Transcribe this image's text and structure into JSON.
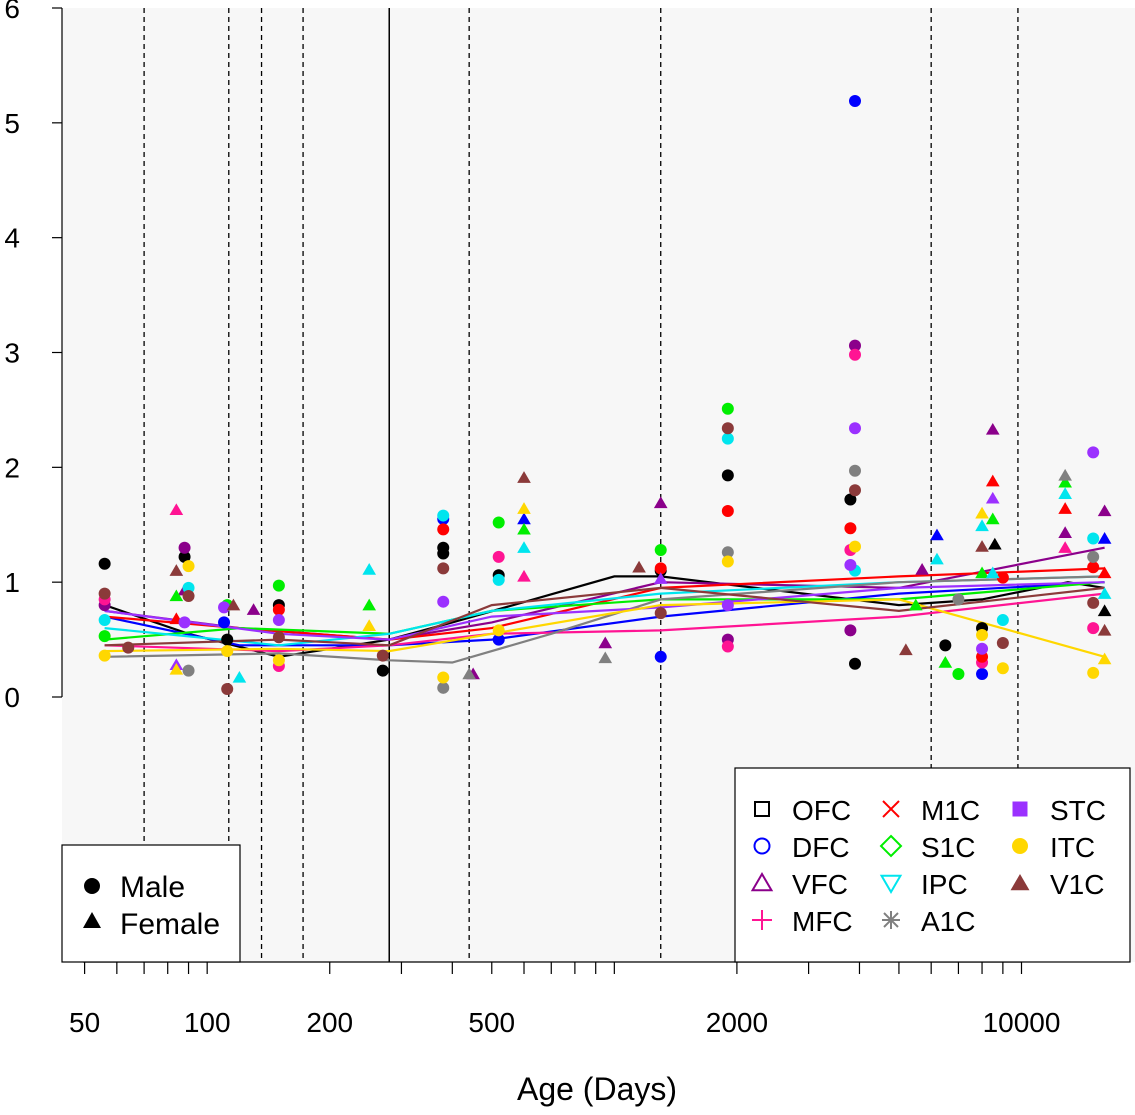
{
  "chart_data": {
    "type": "scatter",
    "title": "",
    "xlabel": "Age (Days)",
    "ylabel": "",
    "x_scale": "log",
    "xlim": [
      44,
      19000
    ],
    "ylim": [
      0,
      6
    ],
    "x_ticks": [
      {
        "value": 50,
        "label": "50"
      },
      {
        "value": 100,
        "label": "100"
      },
      {
        "value": 200,
        "label": "200"
      },
      {
        "value": 500,
        "label": "500"
      },
      {
        "value": 2000,
        "label": "2000"
      },
      {
        "value": 10000,
        "label": "10000"
      }
    ],
    "y_ticks": [
      {
        "value": 0,
        "label": "0"
      },
      {
        "value": 1,
        "label": "1"
      },
      {
        "value": 2,
        "label": "2"
      },
      {
        "value": 3,
        "label": "3"
      },
      {
        "value": 4,
        "label": "4"
      },
      {
        "value": 5,
        "label": "5"
      },
      {
        "value": 6,
        "label": "6"
      }
    ],
    "vertical_lines_dashed": [
      70,
      113,
      136,
      172,
      440,
      1300,
      6000,
      9800
    ],
    "vertical_line_solid": 280,
    "sex_legend": [
      {
        "label": "Male",
        "symbol": "circle"
      },
      {
        "label": "Female",
        "symbol": "triangle"
      }
    ],
    "region_legend_position": "bottom-right",
    "sex_legend_position": "bottom-left",
    "regions": [
      {
        "name": "OFC",
        "color": "#000000",
        "symbol": "square-open"
      },
      {
        "name": "DFC",
        "color": "#0000ff",
        "symbol": "circle-open"
      },
      {
        "name": "VFC",
        "color": "#8b008b",
        "symbol": "triangle-open"
      },
      {
        "name": "MFC",
        "color": "#ff1493",
        "symbol": "plus"
      },
      {
        "name": "M1C",
        "color": "#ff0000",
        "symbol": "cross"
      },
      {
        "name": "S1C",
        "color": "#00ee00",
        "symbol": "diamond-open"
      },
      {
        "name": "IPC",
        "color": "#00e5ee",
        "symbol": "triangle-down-open"
      },
      {
        "name": "A1C",
        "color": "#808080",
        "symbol": "asterisk"
      },
      {
        "name": "STC",
        "color": "#9b30ff",
        "symbol": "square-filled"
      },
      {
        "name": "ITC",
        "color": "#ffd700",
        "symbol": "circle-filled"
      },
      {
        "name": "V1C",
        "color": "#8b3a3a",
        "symbol": "triangle-filled"
      }
    ],
    "trend_lines": [
      {
        "name": "OFC",
        "points": [
          [
            56,
            0.8
          ],
          [
            90,
            0.55
          ],
          [
            150,
            0.35
          ],
          [
            280,
            0.5
          ],
          [
            400,
            0.65
          ],
          [
            1000,
            1.05
          ],
          [
            1300,
            1.05
          ],
          [
            5000,
            0.8
          ],
          [
            8000,
            0.85
          ],
          [
            13000,
            1.0
          ],
          [
            16000,
            0.95
          ]
        ]
      },
      {
        "name": "DFC",
        "points": [
          [
            56,
            0.7
          ],
          [
            120,
            0.45
          ],
          [
            280,
            0.45
          ],
          [
            500,
            0.5
          ],
          [
            1300,
            0.7
          ],
          [
            5000,
            0.9
          ],
          [
            16000,
            1.0
          ]
        ]
      },
      {
        "name": "VFC",
        "points": [
          [
            56,
            0.75
          ],
          [
            120,
            0.6
          ],
          [
            280,
            0.5
          ],
          [
            500,
            0.65
          ],
          [
            1300,
            1.0
          ],
          [
            5000,
            0.95
          ],
          [
            16000,
            1.3
          ]
        ]
      },
      {
        "name": "MFC",
        "points": [
          [
            56,
            0.45
          ],
          [
            150,
            0.4
          ],
          [
            280,
            0.45
          ],
          [
            500,
            0.55
          ],
          [
            1300,
            0.58
          ],
          [
            5000,
            0.7
          ],
          [
            16000,
            0.9
          ]
        ]
      },
      {
        "name": "M1C",
        "points": [
          [
            56,
            0.7
          ],
          [
            120,
            0.6
          ],
          [
            280,
            0.5
          ],
          [
            500,
            0.6
          ],
          [
            1300,
            0.95
          ],
          [
            5000,
            1.05
          ],
          [
            16000,
            1.12
          ]
        ]
      },
      {
        "name": "S1C",
        "points": [
          [
            56,
            0.5
          ],
          [
            120,
            0.6
          ],
          [
            280,
            0.55
          ],
          [
            500,
            0.75
          ],
          [
            1300,
            0.85
          ],
          [
            5000,
            0.85
          ],
          [
            16000,
            1.0
          ]
        ]
      },
      {
        "name": "IPC",
        "points": [
          [
            56,
            0.6
          ],
          [
            150,
            0.45
          ],
          [
            280,
            0.55
          ],
          [
            500,
            0.75
          ],
          [
            1300,
            0.9
          ],
          [
            5000,
            1.0
          ],
          [
            16000,
            1.05
          ]
        ]
      },
      {
        "name": "A1C",
        "points": [
          [
            56,
            0.35
          ],
          [
            150,
            0.38
          ],
          [
            280,
            0.32
          ],
          [
            400,
            0.3
          ],
          [
            700,
            0.55
          ],
          [
            1300,
            0.85
          ],
          [
            5000,
            1.0
          ],
          [
            16000,
            1.05
          ]
        ]
      },
      {
        "name": "STC",
        "points": [
          [
            56,
            0.75
          ],
          [
            150,
            0.55
          ],
          [
            280,
            0.5
          ],
          [
            500,
            0.7
          ],
          [
            1300,
            0.78
          ],
          [
            5000,
            0.95
          ],
          [
            16000,
            1.0
          ]
        ]
      },
      {
        "name": "ITC",
        "points": [
          [
            56,
            0.4
          ],
          [
            150,
            0.42
          ],
          [
            280,
            0.4
          ],
          [
            500,
            0.55
          ],
          [
            1300,
            0.8
          ],
          [
            5000,
            0.85
          ],
          [
            16000,
            0.35
          ]
        ]
      },
      {
        "name": "V1C",
        "points": [
          [
            56,
            0.45
          ],
          [
            150,
            0.5
          ],
          [
            280,
            0.45
          ],
          [
            500,
            0.8
          ],
          [
            1300,
            0.95
          ],
          [
            5000,
            0.75
          ],
          [
            16000,
            0.95
          ]
        ]
      }
    ],
    "points": [
      [
        "OFC",
        "M",
        56,
        1.16
      ],
      [
        "OFC",
        "M",
        88,
        1.22
      ],
      [
        "OFC",
        "M",
        112,
        0.5
      ],
      [
        "OFC",
        "M",
        150,
        0.8
      ],
      [
        "OFC",
        "M",
        270,
        0.23
      ],
      [
        "OFC",
        "M",
        380,
        1.3
      ],
      [
        "OFC",
        "M",
        380,
        1.25
      ],
      [
        "OFC",
        "M",
        520,
        1.06
      ],
      [
        "OFC",
        "M",
        1300,
        1.1
      ],
      [
        "OFC",
        "M",
        1900,
        1.93
      ],
      [
        "OFC",
        "M",
        3800,
        1.72
      ],
      [
        "OFC",
        "M",
        3900,
        0.29
      ],
      [
        "OFC",
        "M",
        6500,
        0.45
      ],
      [
        "OFC",
        "M",
        8000,
        0.6
      ],
      [
        "OFC",
        "F",
        8600,
        1.33
      ],
      [
        "OFC",
        "F",
        16000,
        0.75
      ],
      [
        "DFC",
        "M",
        380,
        1.55
      ],
      [
        "DFC",
        "M",
        520,
        0.5
      ],
      [
        "DFC",
        "M",
        1300,
        0.35
      ],
      [
        "DFC",
        "M",
        3900,
        5.19
      ],
      [
        "DFC",
        "M",
        8000,
        0.2
      ],
      [
        "DFC",
        "F",
        6200,
        1.41
      ],
      [
        "DFC",
        "F",
        600,
        1.55
      ],
      [
        "DFC",
        "F",
        16000,
        1.38
      ],
      [
        "DFC",
        "M",
        110,
        0.65
      ],
      [
        "VFC",
        "M",
        88,
        1.3
      ],
      [
        "VFC",
        "M",
        56,
        0.8
      ],
      [
        "VFC",
        "M",
        1900,
        0.5
      ],
      [
        "VFC",
        "M",
        3800,
        0.58
      ],
      [
        "VFC",
        "M",
        3900,
        3.06
      ],
      [
        "VFC",
        "F",
        88,
        0.93
      ],
      [
        "VFC",
        "F",
        130,
        0.76
      ],
      [
        "VFC",
        "F",
        1300,
        1.69
      ],
      [
        "VFC",
        "F",
        8500,
        2.33
      ],
      [
        "VFC",
        "F",
        12800,
        1.43
      ],
      [
        "VFC",
        "F",
        16000,
        1.62
      ],
      [
        "VFC",
        "F",
        5700,
        1.11
      ],
      [
        "VFC",
        "F",
        950,
        0.47
      ],
      [
        "VFC",
        "F",
        450,
        0.2
      ],
      [
        "MFC",
        "M",
        56,
        0.85
      ],
      [
        "MFC",
        "M",
        150,
        0.27
      ],
      [
        "MFC",
        "M",
        520,
        1.22
      ],
      [
        "MFC",
        "M",
        1900,
        0.44
      ],
      [
        "MFC",
        "M",
        3800,
        1.28
      ],
      [
        "MFC",
        "M",
        3900,
        2.98
      ],
      [
        "MFC",
        "M",
        8000,
        0.3
      ],
      [
        "MFC",
        "M",
        15000,
        0.6
      ],
      [
        "MFC",
        "F",
        84,
        1.63
      ],
      [
        "MFC",
        "F",
        600,
        1.05
      ],
      [
        "MFC",
        "F",
        12800,
        1.3
      ],
      [
        "M1C",
        "M",
        150,
        0.76
      ],
      [
        "M1C",
        "M",
        380,
        1.46
      ],
      [
        "M1C",
        "M",
        1300,
        1.12
      ],
      [
        "M1C",
        "M",
        1900,
        1.62
      ],
      [
        "M1C",
        "M",
        3800,
        1.47
      ],
      [
        "M1C",
        "M",
        8000,
        0.35
      ],
      [
        "M1C",
        "M",
        9000,
        1.04
      ],
      [
        "M1C",
        "M",
        15000,
        1.13
      ],
      [
        "M1C",
        "F",
        8500,
        1.88
      ],
      [
        "M1C",
        "F",
        12800,
        1.64
      ],
      [
        "M1C",
        "F",
        16000,
        1.08
      ],
      [
        "M1C",
        "F",
        84,
        0.68
      ],
      [
        "S1C",
        "M",
        56,
        0.53
      ],
      [
        "S1C",
        "M",
        112,
        0.8
      ],
      [
        "S1C",
        "M",
        150,
        0.97
      ],
      [
        "S1C",
        "M",
        520,
        1.52
      ],
      [
        "S1C",
        "M",
        1300,
        1.28
      ],
      [
        "S1C",
        "M",
        1900,
        2.51
      ],
      [
        "S1C",
        "M",
        7000,
        0.2
      ],
      [
        "S1C",
        "F",
        84,
        0.88
      ],
      [
        "S1C",
        "F",
        250,
        0.8
      ],
      [
        "S1C",
        "F",
        600,
        1.46
      ],
      [
        "S1C",
        "F",
        5500,
        0.8
      ],
      [
        "S1C",
        "F",
        8000,
        1.08
      ],
      [
        "S1C",
        "F",
        8500,
        1.55
      ],
      [
        "S1C",
        "F",
        12800,
        1.87
      ],
      [
        "S1C",
        "F",
        6500,
        0.3
      ],
      [
        "IPC",
        "M",
        56,
        0.67
      ],
      [
        "IPC",
        "M",
        90,
        0.95
      ],
      [
        "IPC",
        "M",
        380,
        1.58
      ],
      [
        "IPC",
        "M",
        520,
        1.02
      ],
      [
        "IPC",
        "M",
        1900,
        2.25
      ],
      [
        "IPC",
        "M",
        3900,
        1.1
      ],
      [
        "IPC",
        "M",
        9000,
        0.67
      ],
      [
        "IPC",
        "M",
        15000,
        1.38
      ],
      [
        "IPC",
        "F",
        250,
        1.11
      ],
      [
        "IPC",
        "F",
        120,
        0.17
      ],
      [
        "IPC",
        "F",
        600,
        1.3
      ],
      [
        "IPC",
        "F",
        6200,
        1.2
      ],
      [
        "IPC",
        "F",
        8000,
        1.49
      ],
      [
        "IPC",
        "F",
        12800,
        1.77
      ],
      [
        "IPC",
        "F",
        16000,
        0.9
      ],
      [
        "IPC",
        "F",
        8500,
        1.08
      ],
      [
        "A1C",
        "M",
        90,
        0.23
      ],
      [
        "A1C",
        "M",
        380,
        0.08
      ],
      [
        "A1C",
        "M",
        1900,
        1.26
      ],
      [
        "A1C",
        "M",
        3900,
        1.97
      ],
      [
        "A1C",
        "M",
        7000,
        0.85
      ],
      [
        "A1C",
        "M",
        15000,
        1.22
      ],
      [
        "A1C",
        "F",
        950,
        0.34
      ],
      [
        "A1C",
        "F",
        12800,
        1.93
      ],
      [
        "A1C",
        "F",
        440,
        0.2
      ],
      [
        "STC",
        "M",
        88,
        0.65
      ],
      [
        "STC",
        "M",
        110,
        0.78
      ],
      [
        "STC",
        "M",
        150,
        0.67
      ],
      [
        "STC",
        "M",
        380,
        0.83
      ],
      [
        "STC",
        "M",
        1900,
        0.8
      ],
      [
        "STC",
        "M",
        3900,
        2.34
      ],
      [
        "STC",
        "M",
        3800,
        1.15
      ],
      [
        "STC",
        "M",
        15000,
        2.13
      ],
      [
        "STC",
        "M",
        8000,
        0.42
      ],
      [
        "STC",
        "F",
        1300,
        1.03
      ],
      [
        "STC",
        "F",
        8500,
        1.73
      ],
      [
        "STC",
        "F",
        84,
        0.28
      ],
      [
        "ITC",
        "M",
        56,
        0.36
      ],
      [
        "ITC",
        "M",
        90,
        1.14
      ],
      [
        "ITC",
        "M",
        112,
        0.4
      ],
      [
        "ITC",
        "M",
        150,
        0.32
      ],
      [
        "ITC",
        "M",
        380,
        0.17
      ],
      [
        "ITC",
        "M",
        520,
        0.58
      ],
      [
        "ITC",
        "M",
        1900,
        1.18
      ],
      [
        "ITC",
        "M",
        3900,
        1.31
      ],
      [
        "ITC",
        "M",
        8000,
        0.54
      ],
      [
        "ITC",
        "M",
        9000,
        0.25
      ],
      [
        "ITC",
        "M",
        15000,
        0.21
      ],
      [
        "ITC",
        "F",
        84,
        0.24
      ],
      [
        "ITC",
        "F",
        250,
        0.62
      ],
      [
        "ITC",
        "F",
        600,
        1.64
      ],
      [
        "ITC",
        "F",
        8000,
        1.6
      ],
      [
        "ITC",
        "F",
        16000,
        0.33
      ],
      [
        "V1C",
        "M",
        56,
        0.9
      ],
      [
        "V1C",
        "M",
        90,
        0.88
      ],
      [
        "V1C",
        "M",
        112,
        0.07
      ],
      [
        "V1C",
        "M",
        150,
        0.52
      ],
      [
        "V1C",
        "M",
        380,
        1.12
      ],
      [
        "V1C",
        "M",
        1300,
        0.73
      ],
      [
        "V1C",
        "M",
        1900,
        2.34
      ],
      [
        "V1C",
        "M",
        3900,
        1.8
      ],
      [
        "V1C",
        "M",
        9000,
        0.47
      ],
      [
        "V1C",
        "M",
        15000,
        0.82
      ],
      [
        "V1C",
        "F",
        84,
        1.1
      ],
      [
        "V1C",
        "F",
        116,
        0.8
      ],
      [
        "V1C",
        "F",
        600,
        1.91
      ],
      [
        "V1C",
        "F",
        1150,
        1.13
      ],
      [
        "V1C",
        "F",
        5200,
        0.41
      ],
      [
        "V1C",
        "F",
        8000,
        1.31
      ],
      [
        "V1C",
        "F",
        16000,
        0.58
      ],
      [
        "V1C",
        "M",
        64,
        0.43
      ],
      [
        "V1C",
        "M",
        270,
        0.36
      ]
    ]
  }
}
